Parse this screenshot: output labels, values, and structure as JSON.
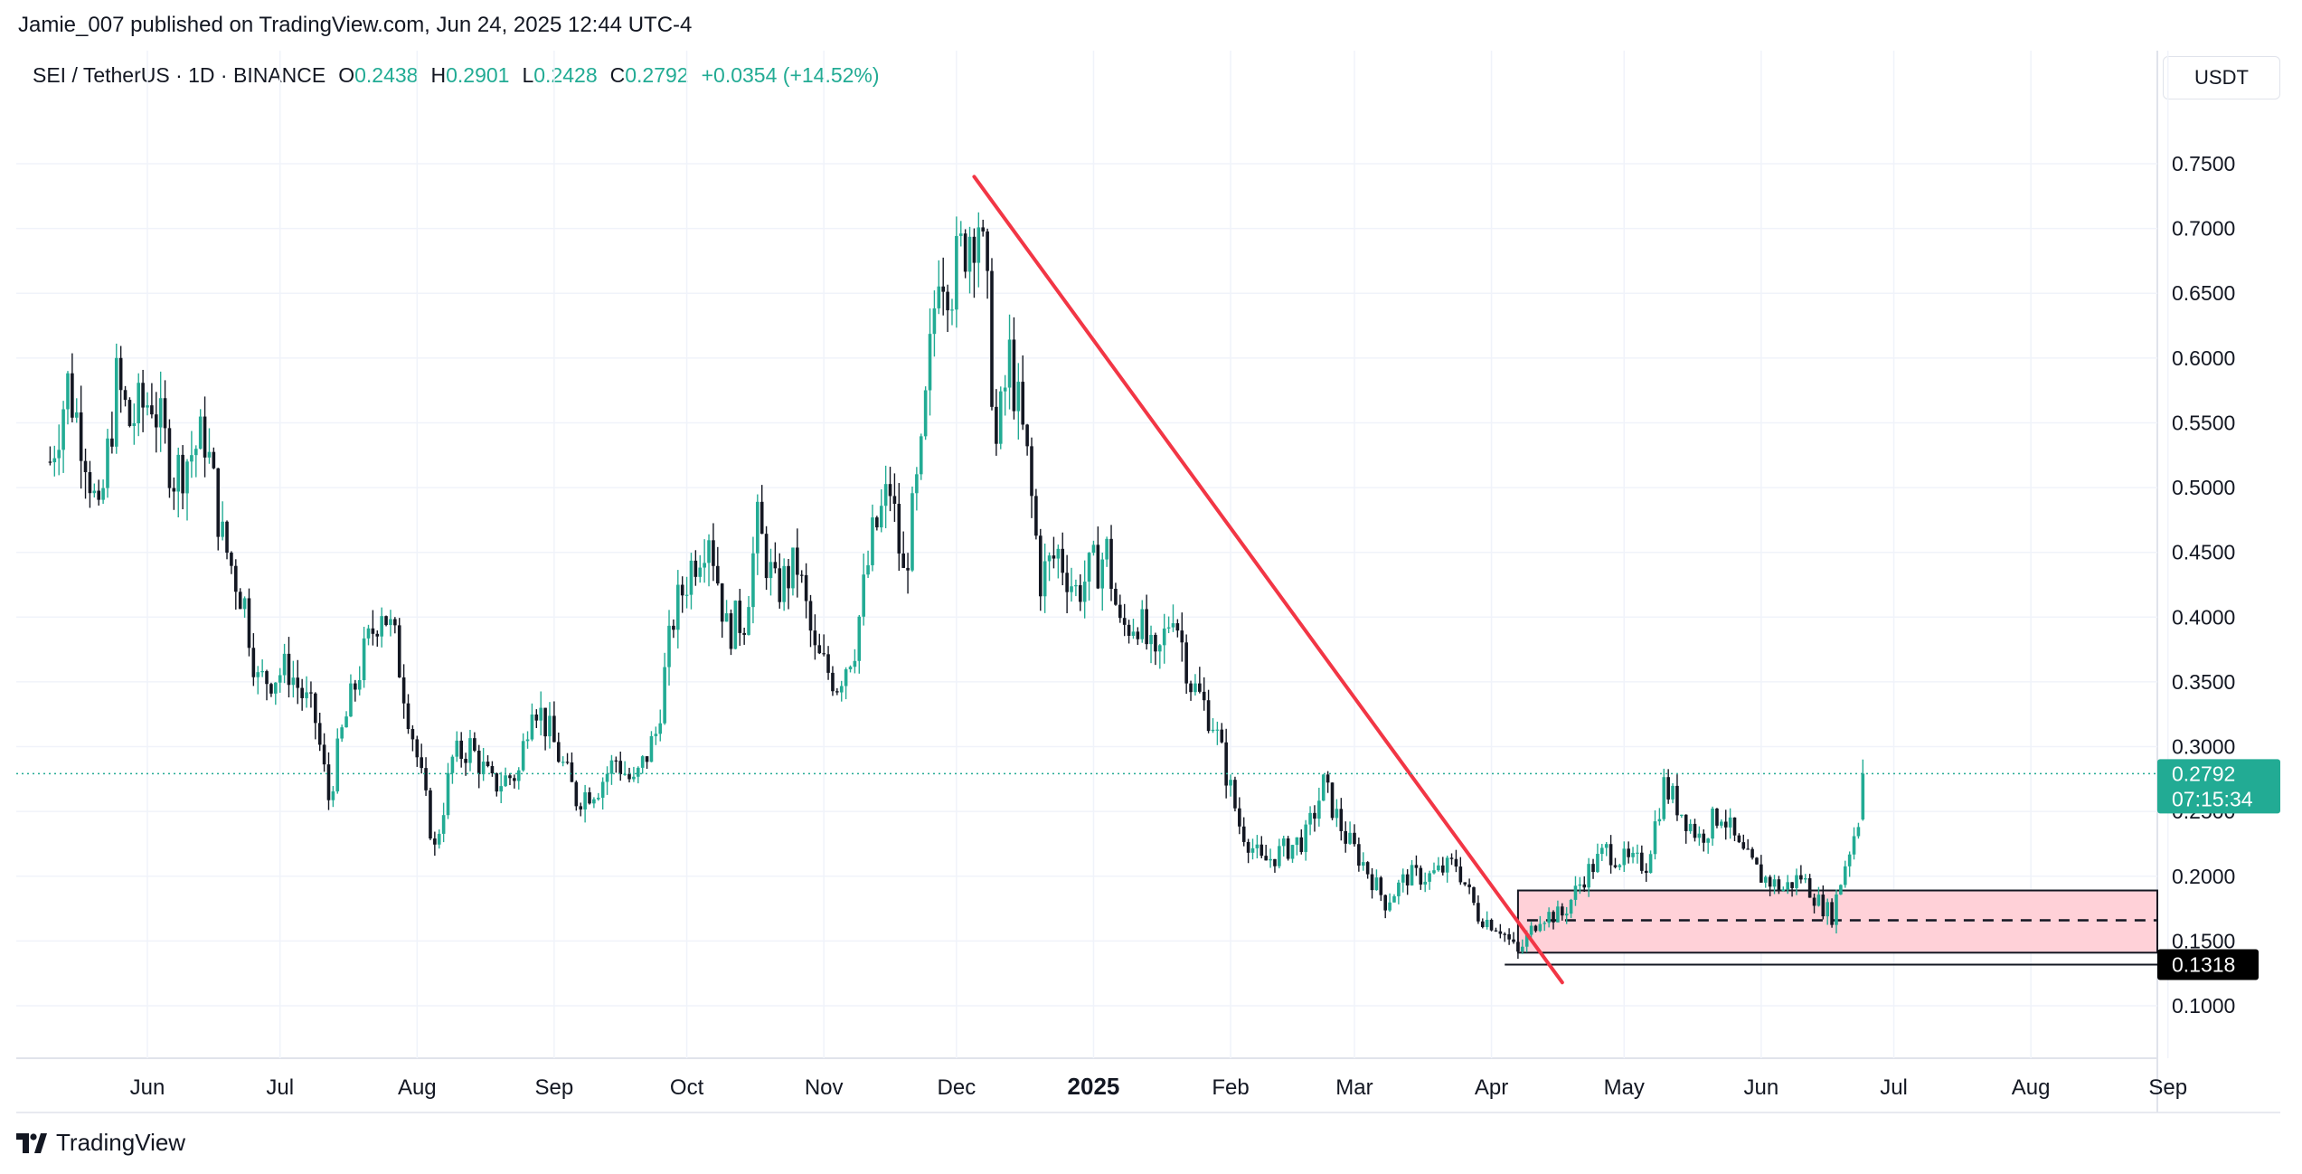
{
  "header": {
    "publisher": "Jamie_007 published on TradingView.com, Jun 24, 2025 12:44 UTC-4",
    "symbol": "SEI / TetherUS · 1D · BINANCE",
    "ohlc": [
      {
        "key": "O",
        "value": "0.2438"
      },
      {
        "key": "H",
        "value": "0.2901"
      },
      {
        "key": "L",
        "value": "0.2428"
      },
      {
        "key": "C",
        "value": "0.2792"
      }
    ],
    "change": "+0.0354 (+14.52%)"
  },
  "currency_button": "USDT",
  "price_axis": {
    "ticks": [
      "0.7500",
      "0.7000",
      "0.6500",
      "0.6000",
      "0.5500",
      "0.5000",
      "0.4500",
      "0.4000",
      "0.3500",
      "0.3000",
      "0.2500",
      "0.2000",
      "0.1500",
      "0.1000"
    ],
    "last_price_label": "0.2792",
    "countdown_label": "07:15:34",
    "support_label": "0.1318"
  },
  "time_axis": {
    "labels": [
      "Jun",
      "Jul",
      "Aug",
      "Sep",
      "Oct",
      "Nov",
      "Dec",
      "2025",
      "Feb",
      "Mar",
      "Apr",
      "May",
      "Jun",
      "Jul",
      "Aug",
      "Sep"
    ]
  },
  "colors": {
    "up": "#22ab94",
    "down": "#131722",
    "trendline": "#f23645",
    "zone_fill": "#ffd1d8",
    "last_price_label": "#22ab94",
    "support_label": "#000000"
  },
  "footer": {
    "logo_text": "TradingView"
  },
  "chart_data": {
    "type": "candlestick",
    "symbol": "SEI / TetherUS",
    "interval": "1D",
    "exchange": "BINANCE",
    "ylim": [
      0.08,
      0.79
    ],
    "last_price": 0.2792,
    "support_level": 0.1318,
    "zone": {
      "top": 0.189,
      "mid": 0.166,
      "bottom": 0.141,
      "from": "2025-04-07",
      "to": "open"
    },
    "trendline": {
      "from": {
        "date": "2024-12-05",
        "price": 0.74
      },
      "to": {
        "date": "2025-04-17",
        "price": 0.118
      }
    },
    "path": [
      [
        "2024-05-10",
        0.52
      ],
      [
        "2024-05-14",
        0.58
      ],
      [
        "2024-05-18",
        0.53
      ],
      [
        "2024-05-21",
        0.47
      ],
      [
        "2024-05-25",
        0.58
      ],
      [
        "2024-05-28",
        0.55
      ],
      [
        "2024-06-02",
        0.57
      ],
      [
        "2024-06-07",
        0.51
      ],
      [
        "2024-06-14",
        0.54
      ],
      [
        "2024-06-18",
        0.46
      ],
      [
        "2024-06-23",
        0.41
      ],
      [
        "2024-06-26",
        0.35
      ],
      [
        "2024-07-03",
        0.36
      ],
      [
        "2024-07-09",
        0.32
      ],
      [
        "2024-07-12",
        0.26
      ],
      [
        "2024-07-15",
        0.31
      ],
      [
        "2024-07-19",
        0.36
      ],
      [
        "2024-07-24",
        0.41
      ],
      [
        "2024-07-27",
        0.38
      ],
      [
        "2024-07-31",
        0.31
      ],
      [
        "2024-08-05",
        0.22
      ],
      [
        "2024-08-09",
        0.29
      ],
      [
        "2024-08-13",
        0.3
      ],
      [
        "2024-08-18",
        0.27
      ],
      [
        "2024-08-24",
        0.28
      ],
      [
        "2024-08-27",
        0.34
      ],
      [
        "2024-08-31",
        0.31
      ],
      [
        "2024-09-06",
        0.26
      ],
      [
        "2024-09-11",
        0.27
      ],
      [
        "2024-09-15",
        0.29
      ],
      [
        "2024-09-19",
        0.27
      ],
      [
        "2024-09-24",
        0.31
      ],
      [
        "2024-09-28",
        0.4
      ],
      [
        "2024-10-02",
        0.44
      ],
      [
        "2024-10-06",
        0.47
      ],
      [
        "2024-10-10",
        0.39
      ],
      [
        "2024-10-14",
        0.4
      ],
      [
        "2024-10-17",
        0.47
      ],
      [
        "2024-10-21",
        0.42
      ],
      [
        "2024-10-26",
        0.44
      ],
      [
        "2024-10-30",
        0.37
      ],
      [
        "2024-11-04",
        0.35
      ],
      [
        "2024-11-08",
        0.38
      ],
      [
        "2024-11-12",
        0.46
      ],
      [
        "2024-11-16",
        0.5
      ],
      [
        "2024-11-19",
        0.43
      ],
      [
        "2024-11-23",
        0.52
      ],
      [
        "2024-11-27",
        0.68
      ],
      [
        "2024-11-30",
        0.66
      ],
      [
        "2024-12-04",
        0.7
      ],
      [
        "2024-12-06",
        0.71
      ],
      [
        "2024-12-08",
        0.64
      ],
      [
        "2024-12-10",
        0.53
      ],
      [
        "2024-12-13",
        0.6
      ],
      [
        "2024-12-17",
        0.52
      ],
      [
        "2024-12-20",
        0.43
      ],
      [
        "2024-12-24",
        0.45
      ],
      [
        "2024-12-28",
        0.42
      ],
      [
        "2025-01-04",
        0.45
      ],
      [
        "2025-01-07",
        0.39
      ],
      [
        "2025-01-11",
        0.4
      ],
      [
        "2025-01-15",
        0.36
      ],
      [
        "2025-01-19",
        0.41
      ],
      [
        "2025-01-23",
        0.35
      ],
      [
        "2025-01-28",
        0.32
      ],
      [
        "2025-02-03",
        0.24
      ],
      [
        "2025-02-08",
        0.21
      ],
      [
        "2025-02-13",
        0.22
      ],
      [
        "2025-02-18",
        0.23
      ],
      [
        "2025-02-22",
        0.27
      ],
      [
        "2025-02-27",
        0.23
      ],
      [
        "2025-03-03",
        0.21
      ],
      [
        "2025-03-08",
        0.18
      ],
      [
        "2025-03-13",
        0.2
      ],
      [
        "2025-03-18",
        0.2
      ],
      [
        "2025-03-24",
        0.21
      ],
      [
        "2025-03-29",
        0.17
      ],
      [
        "2025-04-03",
        0.16
      ],
      [
        "2025-04-07",
        0.14
      ],
      [
        "2025-04-12",
        0.17
      ],
      [
        "2025-04-17",
        0.17
      ],
      [
        "2025-04-22",
        0.2
      ],
      [
        "2025-04-27",
        0.22
      ],
      [
        "2025-05-02",
        0.21
      ],
      [
        "2025-05-06",
        0.21
      ],
      [
        "2025-05-10",
        0.27
      ],
      [
        "2025-05-14",
        0.25
      ],
      [
        "2025-05-18",
        0.23
      ],
      [
        "2025-05-23",
        0.25
      ],
      [
        "2025-05-27",
        0.22
      ],
      [
        "2025-06-01",
        0.2
      ],
      [
        "2025-06-06",
        0.19
      ],
      [
        "2025-06-10",
        0.2
      ],
      [
        "2025-06-14",
        0.18
      ],
      [
        "2025-06-17",
        0.17
      ],
      [
        "2025-06-20",
        0.21
      ],
      [
        "2025-06-23",
        0.244
      ],
      [
        "2025-06-24",
        0.2792
      ]
    ]
  }
}
